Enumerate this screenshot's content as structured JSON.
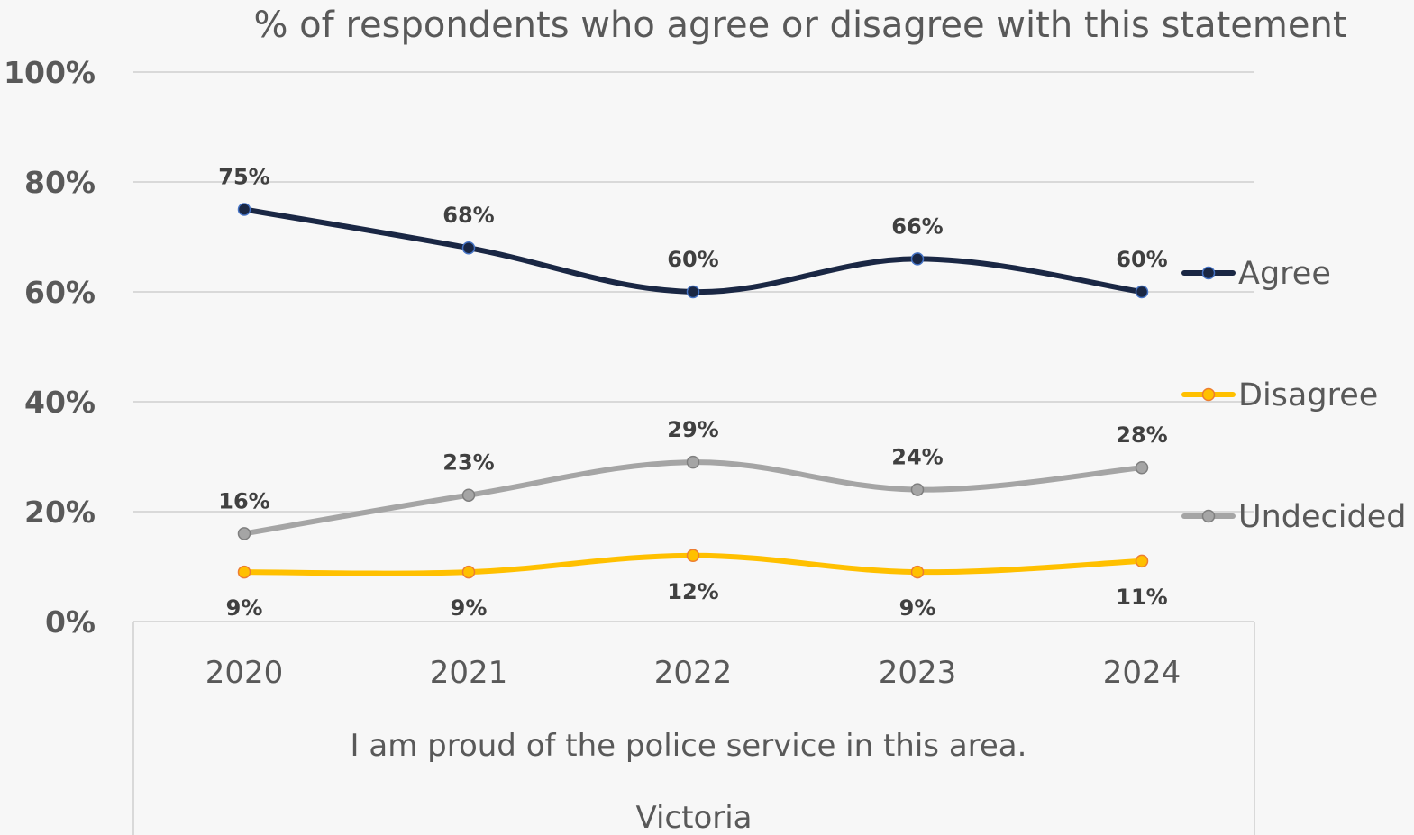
{
  "chart_data": {
    "type": "line",
    "title": "% of respondents who agree or disagree with this statement",
    "x": [
      "2020",
      "2021",
      "2022",
      "2023",
      "2024"
    ],
    "category_levels": [
      "I am proud of the police service in this area.",
      "Victoria"
    ],
    "y_ticks": [
      "0%",
      "20%",
      "40%",
      "60%",
      "80%",
      "100%"
    ],
    "ylim": [
      0,
      100
    ],
    "grid": true,
    "legend_position": "right",
    "series": [
      {
        "name": "Agree",
        "color": "#1a2744",
        "marker_fill": "#1a2744",
        "marker_stroke": "#4472c4",
        "values": [
          75,
          68,
          60,
          66,
          60
        ],
        "labels": [
          "75%",
          "68%",
          "60%",
          "66%",
          "60%"
        ],
        "label_position": "above"
      },
      {
        "name": "Disagree",
        "color": "#ffc000",
        "marker_fill": "#ffc000",
        "marker_stroke": "#ed7d31",
        "values": [
          9,
          9,
          12,
          9,
          11
        ],
        "labels": [
          "9%",
          "9%",
          "12%",
          "9%",
          "11%"
        ],
        "label_position": "below"
      },
      {
        "name": "Undecided",
        "color": "#a5a5a5",
        "marker_fill": "#a5a5a5",
        "marker_stroke": "#7f7f7f",
        "values": [
          16,
          23,
          29,
          24,
          28
        ],
        "labels": [
          "16%",
          "23%",
          "29%",
          "24%",
          "28%"
        ],
        "label_position": "above"
      }
    ]
  }
}
